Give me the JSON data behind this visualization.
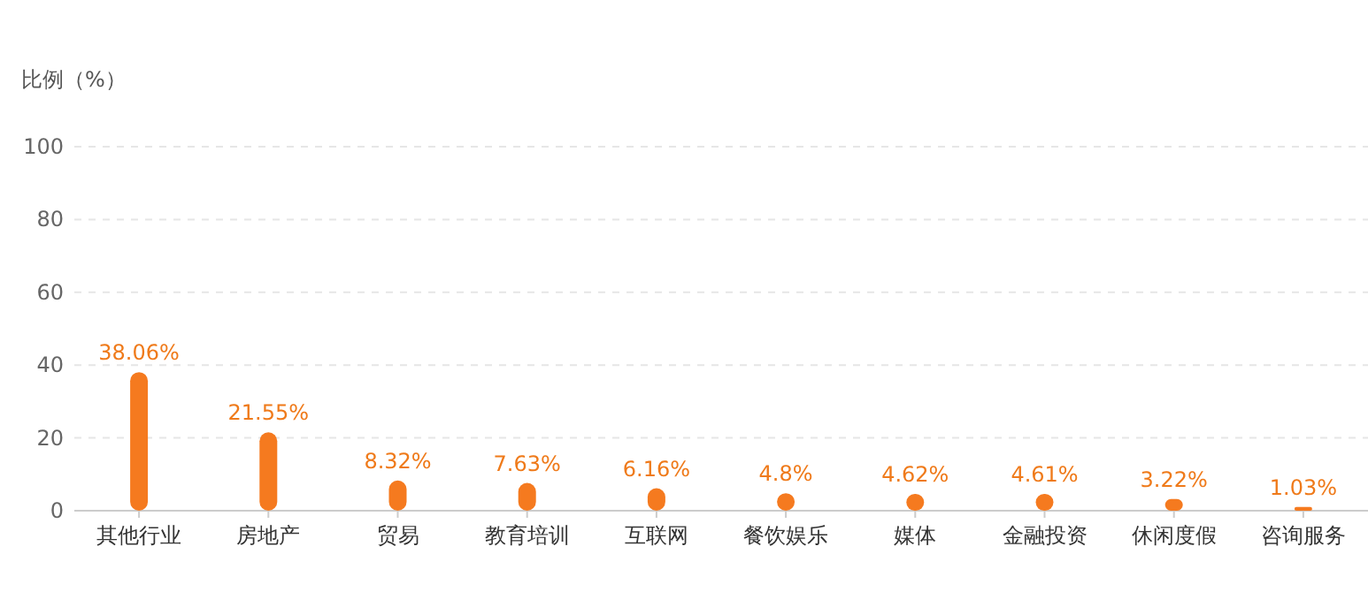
{
  "chart_data": {
    "type": "bar",
    "ylabel": "比例（%）",
    "categories": [
      "其他行业",
      "房地产",
      "贸易",
      "教育培训",
      "互联网",
      "餐饮娱乐",
      "媒体",
      "金融投资",
      "休闲度假",
      "咨询服务"
    ],
    "values": [
      38.06,
      21.55,
      8.32,
      7.63,
      6.16,
      4.8,
      4.62,
      4.61,
      3.22,
      1.03
    ],
    "value_labels": [
      "38.06%",
      "21.55%",
      "8.32%",
      "7.63%",
      "6.16%",
      "4.8%",
      "4.62%",
      "4.61%",
      "3.22%",
      "1.03%"
    ],
    "color": "#f57a1f",
    "ylim": [
      0,
      100
    ],
    "yticks": [
      0,
      20,
      40,
      60,
      80,
      100
    ],
    "grid": "y"
  }
}
